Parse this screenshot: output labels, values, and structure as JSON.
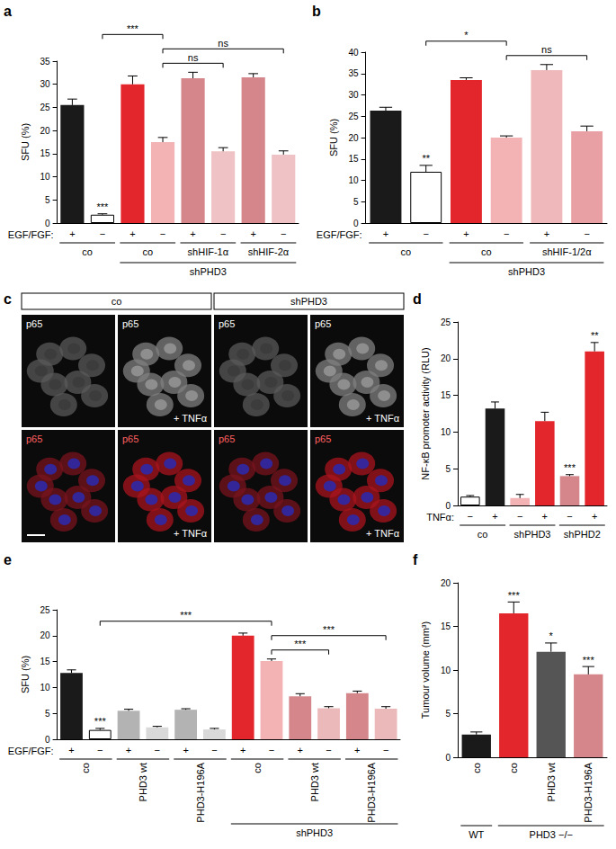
{
  "chart_data": [
    {
      "panel": "a",
      "type": "bar",
      "y_label": "SFU (%)",
      "ylim": [
        0,
        35
      ],
      "yticks": [
        0,
        5,
        10,
        15,
        20,
        25,
        30,
        35
      ],
      "grid": false,
      "row_label": "EGF/FGF:",
      "categories": [
        "+",
        "−",
        "+",
        "−",
        "+",
        "−",
        "+",
        "−"
      ],
      "values": [
        25.5,
        1.8,
        30,
        17.5,
        31.3,
        15.5,
        31.5,
        14.8
      ],
      "errors": [
        1.3,
        0.2,
        1.8,
        1,
        1.3,
        0.8,
        0.8,
        0.8
      ],
      "colors": [
        "#1a1a1a",
        "#ffffff",
        "#e3262c",
        "#f3b3b5",
        "#d4868b",
        "#efc3c5",
        "#d4868b",
        "#efc3c5"
      ],
      "groups": [
        {
          "label": "co",
          "bars": [
            0,
            1
          ]
        },
        {
          "label": "co",
          "bars": [
            2,
            3
          ]
        },
        {
          "label": "shHIF-1α",
          "bars": [
            4,
            5
          ]
        },
        {
          "label": "shHIF-2α",
          "bars": [
            6,
            7
          ]
        }
      ],
      "brackets": [
        {
          "label": "shPHD3",
          "bars": [
            2,
            7
          ]
        }
      ],
      "bar_marks": [
        {
          "bar": 1,
          "text": "***"
        }
      ],
      "comparisons": [
        {
          "bars": [
            3,
            5
          ],
          "text": "ns"
        },
        {
          "bars": [
            3,
            7
          ],
          "text": "ns"
        },
        {
          "bars": [
            1,
            3
          ],
          "text": "***"
        }
      ]
    },
    {
      "panel": "b",
      "type": "bar",
      "y_label": "SFU (%)",
      "ylim": [
        0,
        40
      ],
      "yticks": [
        0,
        5,
        10,
        15,
        20,
        25,
        30,
        35,
        40
      ],
      "grid": false,
      "row_label": "EGF/FGF:",
      "categories": [
        "+",
        "−",
        "+",
        "−",
        "+",
        "−"
      ],
      "values": [
        26.3,
        12,
        33.5,
        20,
        35.8,
        21.5
      ],
      "errors": [
        0.8,
        1.5,
        0.5,
        0.4,
        1.3,
        1.2
      ],
      "colors": [
        "#1a1a1a",
        "#ffffff",
        "#e3262c",
        "#f3b3b5",
        "#efb8ba",
        "#e9a0a4"
      ],
      "groups": [
        {
          "label": "co",
          "bars": [
            0,
            1
          ]
        },
        {
          "label": "co",
          "bars": [
            2,
            3
          ]
        },
        {
          "label": "shHIF-1/2α",
          "bars": [
            4,
            5
          ]
        }
      ],
      "brackets": [
        {
          "label": "shPHD3",
          "bars": [
            2,
            5
          ]
        }
      ],
      "bar_marks": [
        {
          "bar": 1,
          "text": "**"
        }
      ],
      "comparisons": [
        {
          "bars": [
            3,
            5
          ],
          "text": "ns"
        },
        {
          "bars": [
            1,
            3
          ],
          "text": "*"
        }
      ]
    },
    {
      "panel": "d",
      "type": "bar",
      "y_label": "NF-κB promoter activity (RLU)",
      "ylim": [
        0,
        25
      ],
      "yticks": [
        0,
        5,
        10,
        15,
        20,
        25
      ],
      "grid": false,
      "row_label": "TNFα:",
      "categories": [
        "−",
        "+",
        "−",
        "+",
        "−",
        "+"
      ],
      "values": [
        1.2,
        13.2,
        1.0,
        11.5,
        4,
        21
      ],
      "errors": [
        0.15,
        0.9,
        0.5,
        1.2,
        0.2,
        1.2
      ],
      "colors": [
        "#ffffff",
        "#1a1a1a",
        "#f3b3b5",
        "#e3262c",
        "#d4868b",
        "#e3262c"
      ],
      "groups": [
        {
          "label": "co",
          "bars": [
            0,
            1
          ]
        },
        {
          "label": "shPHD3",
          "bars": [
            2,
            3
          ]
        },
        {
          "label": "shPHD2",
          "bars": [
            4,
            5
          ]
        }
      ],
      "bar_marks": [
        {
          "bar": 4,
          "text": "***"
        },
        {
          "bar": 5,
          "text": "**"
        }
      ]
    },
    {
      "panel": "e",
      "type": "bar",
      "y_label": "SFU (%)",
      "ylim": [
        0,
        25
      ],
      "yticks": [
        0,
        5,
        10,
        15,
        20,
        25
      ],
      "grid": false,
      "row_label": "EGF/FGF:",
      "categories": [
        "+",
        "−",
        "+",
        "−",
        "+",
        "−",
        "+",
        "−",
        "+",
        "−",
        "+",
        "−"
      ],
      "values": [
        12.8,
        1.8,
        5.5,
        2.3,
        5.7,
        1.9,
        20,
        15.1,
        8.3,
        6.0,
        8.9,
        5.9
      ],
      "errors": [
        0.6,
        0.3,
        0.3,
        0.2,
        0.2,
        0.2,
        0.5,
        0.4,
        0.5,
        0.3,
        0.4,
        0.4
      ],
      "colors": [
        "#1a1a1a",
        "#ffffff",
        "#b3b3b3",
        "#d9d9d9",
        "#b3b3b3",
        "#d9d9d9",
        "#e3262c",
        "#f3b3b5",
        "#d4868b",
        "#ecb9bb",
        "#d4868b",
        "#ecb9bb"
      ],
      "groups": [
        {
          "label": "co",
          "bars": [
            0,
            1
          ]
        },
        {
          "label": "PHD3 wt",
          "bars": [
            2,
            3
          ]
        },
        {
          "label": "PHD3-H196A",
          "bars": [
            4,
            5
          ]
        },
        {
          "label": "co",
          "bars": [
            6,
            7
          ]
        },
        {
          "label": "PHD3 wt",
          "bars": [
            8,
            9
          ]
        },
        {
          "label": "PHD3-H196A",
          "bars": [
            10,
            11
          ]
        }
      ],
      "brackets": [
        {
          "label": "shPHD3",
          "bars": [
            6,
            11
          ]
        }
      ],
      "bar_marks": [
        {
          "bar": 1,
          "text": "***"
        }
      ],
      "comparisons": [
        {
          "bars": [
            7,
            9
          ],
          "text": "***"
        },
        {
          "bars": [
            7,
            11
          ],
          "text": "***"
        },
        {
          "bars": [
            1,
            7
          ],
          "text": "***"
        }
      ]
    },
    {
      "panel": "f",
      "type": "bar",
      "y_label": "Tumour volume (mm³)",
      "ylim": [
        0,
        20
      ],
      "yticks": [
        0,
        5,
        10,
        15,
        20
      ],
      "grid": false,
      "categories": [
        "co",
        "co",
        "PHD3 wt",
        "PHD3-H196A"
      ],
      "values": [
        2.6,
        16.5,
        12.1,
        9.5
      ],
      "errors": [
        0.3,
        1.3,
        1.0,
        0.9
      ],
      "colors": [
        "#1a1a1a",
        "#e3262c",
        "#555555",
        "#d4868b"
      ],
      "brackets": [
        {
          "label": "WT",
          "bars": [
            0,
            0
          ]
        },
        {
          "label": "PHD3 −/−",
          "bars": [
            1,
            3
          ]
        }
      ],
      "bar_marks": [
        {
          "bar": 1,
          "text": "***"
        },
        {
          "bar": 2,
          "text": "*"
        },
        {
          "bar": 3,
          "text": "***"
        }
      ]
    }
  ],
  "image_panel": {
    "panel": "c",
    "columns": [
      "co",
      "shPHD3"
    ],
    "row_labels": [
      "p65",
      "p65"
    ],
    "treatment": "+ TNFα"
  }
}
